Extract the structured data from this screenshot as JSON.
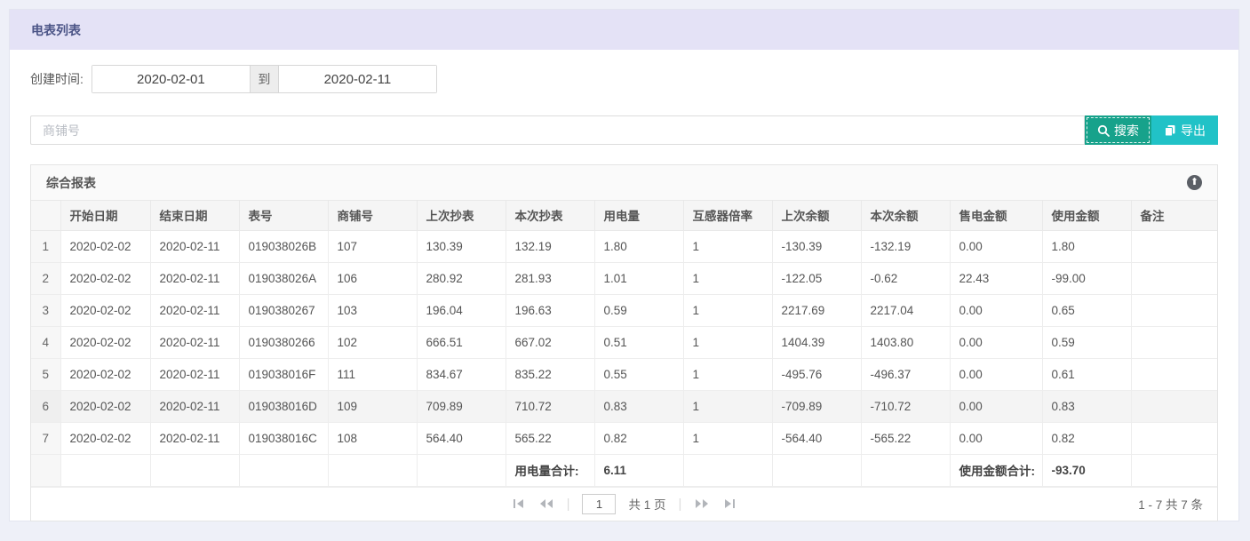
{
  "page": {
    "title": "电表列表"
  },
  "filters": {
    "created_label": "创建时间:",
    "date_from": "2020-02-01",
    "to_label": "到",
    "date_to": "2020-02-11",
    "search_placeholder": "商铺号",
    "search_button": "搜索",
    "export_button": "导出"
  },
  "report": {
    "title": "综合报表",
    "collapse_icon": "arrow-up-circle",
    "collapse_glyph": "⬆"
  },
  "table": {
    "columns": [
      "",
      "开始日期",
      "结束日期",
      "表号",
      "商铺号",
      "上次抄表",
      "本次抄表",
      "用电量",
      "互感器倍率",
      "上次余额",
      "本次余额",
      "售电金额",
      "使用金额",
      "备注"
    ],
    "rows": [
      [
        "1",
        "2020-02-02",
        "2020-02-11",
        "019038026B",
        "107",
        "130.39",
        "132.19",
        "1.80",
        "1",
        "-130.39",
        "-132.19",
        "0.00",
        "1.80",
        ""
      ],
      [
        "2",
        "2020-02-02",
        "2020-02-11",
        "019038026A",
        "106",
        "280.92",
        "281.93",
        "1.01",
        "1",
        "-122.05",
        "-0.62",
        "22.43",
        "-99.00",
        ""
      ],
      [
        "3",
        "2020-02-02",
        "2020-02-11",
        "0190380267",
        "103",
        "196.04",
        "196.63",
        "0.59",
        "1",
        "2217.69",
        "2217.04",
        "0.00",
        "0.65",
        ""
      ],
      [
        "4",
        "2020-02-02",
        "2020-02-11",
        "0190380266",
        "102",
        "666.51",
        "667.02",
        "0.51",
        "1",
        "1404.39",
        "1403.80",
        "0.00",
        "0.59",
        ""
      ],
      [
        "5",
        "2020-02-02",
        "2020-02-11",
        "019038016F",
        "111",
        "834.67",
        "835.22",
        "0.55",
        "1",
        "-495.76",
        "-496.37",
        "0.00",
        "0.61",
        ""
      ],
      [
        "6",
        "2020-02-02",
        "2020-02-11",
        "019038016D",
        "109",
        "709.89",
        "710.72",
        "0.83",
        "1",
        "-709.89",
        "-710.72",
        "0.00",
        "0.83",
        ""
      ],
      [
        "7",
        "2020-02-02",
        "2020-02-11",
        "019038016C",
        "108",
        "564.40",
        "565.22",
        "0.82",
        "1",
        "-564.40",
        "-565.22",
        "0.00",
        "0.82",
        ""
      ]
    ],
    "highlighted_row_index": 5,
    "summary": {
      "usage_total_label": "用电量合计:",
      "usage_total": "6.11",
      "amount_total_label": "使用金额合计:",
      "amount_total": "-93.70"
    }
  },
  "pagination": {
    "page_input": "1",
    "page_total_label": "共 1 页",
    "range_label": "1 - 7 共 7 条"
  },
  "colors": {
    "page_bg": "#eef0f8",
    "titlebar_bg": "#e4e2f6",
    "title_text": "#4b5486",
    "search_btn": "#17a28b",
    "export_btn": "#21c2c7",
    "header_bg": "#f5f5f5",
    "border": "#e9e9e9"
  }
}
